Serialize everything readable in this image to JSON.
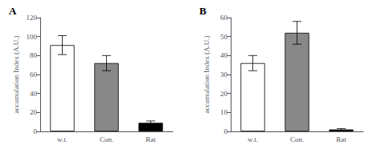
{
  "chart_data": [
    {
      "type": "bar",
      "title": "A",
      "categories": [
        "w.t.",
        "Con.",
        "Rat"
      ],
      "values": [
        91,
        72,
        9
      ],
      "errors": [
        10,
        8,
        2
      ],
      "colors": [
        "white",
        "#888888",
        "black"
      ],
      "ylim": [
        0,
        120
      ],
      "yticks": [
        0,
        20,
        40,
        60,
        80,
        100,
        120
      ],
      "ylabel": "accumulation Index (A.U.)",
      "grid": false
    },
    {
      "type": "bar",
      "title": "B",
      "categories": [
        "w.t.",
        "Con.",
        "Rat"
      ],
      "values": [
        36,
        52,
        1
      ],
      "errors": [
        4,
        6,
        0.5
      ],
      "colors": [
        "white",
        "#888888",
        "black"
      ],
      "ylim": [
        0,
        60
      ],
      "yticks": [
        0,
        10,
        20,
        30,
        40,
        50,
        60
      ],
      "ylabel": "accumulation Index (A.U.)",
      "grid": false
    }
  ]
}
